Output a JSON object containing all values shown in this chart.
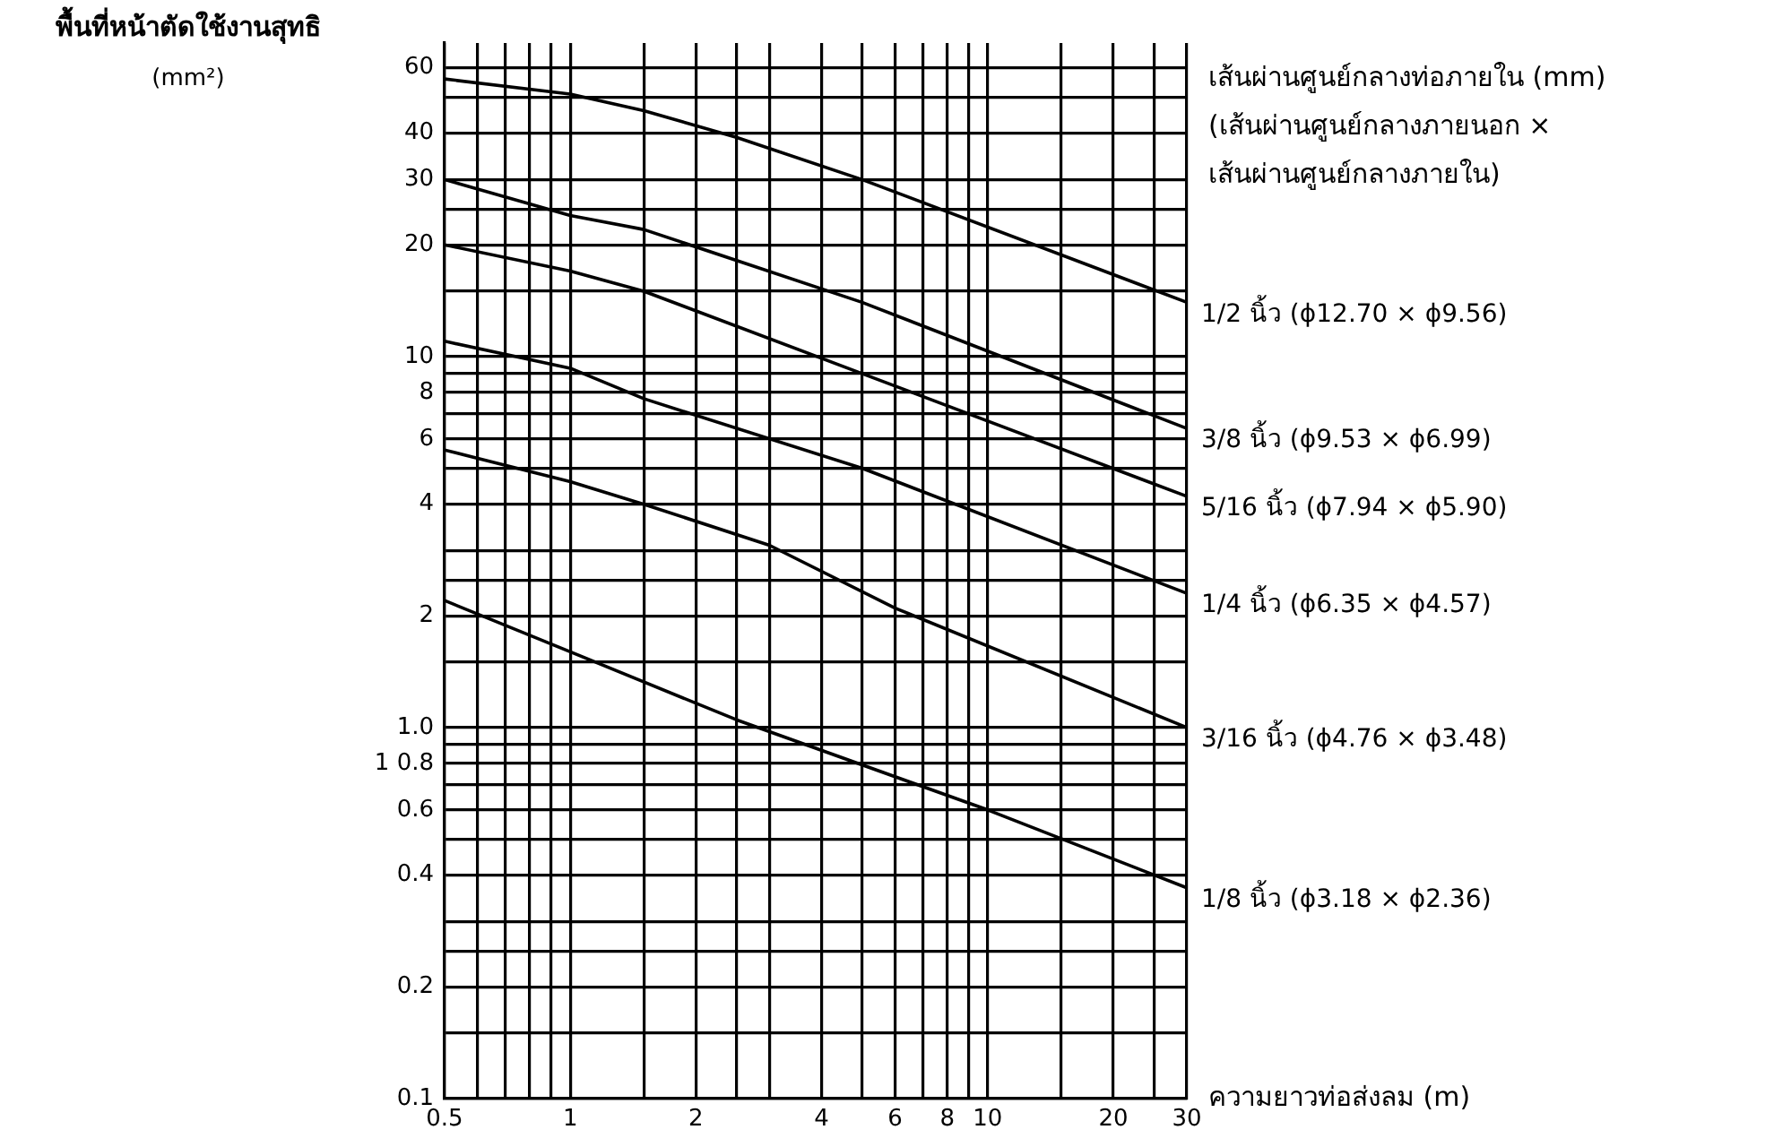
{
  "chart_data": {
    "type": "line",
    "ylabel": "พื้นที่หน้าตัดใช้งานสุทธิ (mm²)",
    "xlabel": "ความยาวท่อส่งลม (m)",
    "legend_title": "เส้นผ่านศูนย์กลางท่อภายใน (mm) (เส้นผ่านศูนย์กลางภายนอก × เส้นผ่านศูนย์กลางภายใน)",
    "log": "xy",
    "grid": true,
    "legend": false,
    "marker": "none",
    "line_style": "solid",
    "xlim": [
      0.5,
      30
    ],
    "ylim": [
      0.1,
      70
    ],
    "xticks": [
      0.5,
      {
        "value": 0.6,
        "label": null
      },
      {
        "value": 0.7,
        "label": null
      },
      {
        "value": 0.8,
        "label": null
      },
      {
        "value": 0.9,
        "label": null
      },
      1,
      {
        "value": 1.5,
        "label": null
      },
      2,
      {
        "value": 2.5,
        "label": null
      },
      {
        "value": 3,
        "label": null
      },
      4,
      {
        "value": 5,
        "label": null
      },
      6,
      {
        "value": 7,
        "label": null
      },
      8,
      {
        "value": 9,
        "label": null
      },
      10,
      {
        "value": 15,
        "label": null
      },
      20,
      {
        "value": 25,
        "label": null
      },
      30
    ],
    "yticks": [
      0.1,
      {
        "value": 0.15,
        "label": null
      },
      0.2,
      {
        "value": 0.25,
        "label": null
      },
      {
        "value": 0.3,
        "label": null
      },
      0.4,
      {
        "value": 0.5,
        "label": null
      },
      0.6,
      {
        "value": 0.7,
        "label": null
      },
      {
        "value": 0.8,
        "label": "1 0.8"
      },
      {
        "value": 0.9,
        "label": null
      },
      {
        "value": 1,
        "label": "1.0"
      },
      {
        "value": 1.5,
        "label": null
      },
      2,
      {
        "value": 2.5,
        "label": null
      },
      {
        "value": 3,
        "label": null
      },
      4,
      {
        "value": 5,
        "label": null
      },
      6,
      {
        "value": 7,
        "label": null
      },
      8,
      {
        "value": 9,
        "label": null
      },
      10,
      {
        "value": 15,
        "label": null
      },
      20,
      {
        "value": 25,
        "label": null
      },
      30,
      40,
      {
        "value": 50,
        "label": null
      },
      60
    ],
    "series": [
      {
        "name": "1/2 นิ้ว (ϕ12.70 × ϕ9.56)",
        "color": "#000000",
        "x": [
          0.5,
          1,
          1.5,
          2.5,
          5,
          30
        ],
        "values": [
          56,
          51,
          46,
          39,
          30,
          14
        ]
      },
      {
        "name": "3/8 นิ้ว (ϕ9.53 × ϕ6.99)",
        "color": "#000000",
        "x": [
          0.5,
          1,
          1.5,
          5,
          30
        ],
        "values": [
          30,
          24,
          22,
          14,
          6.4
        ]
      },
      {
        "name": "5/16 นิ้ว (ϕ7.94 × ϕ5.90)",
        "color": "#000000",
        "x": [
          0.5,
          1,
          1.5,
          5,
          30
        ],
        "values": [
          20,
          17,
          15,
          9,
          4.2
        ]
      },
      {
        "name": "1/4 นิ้ว (ϕ6.35 × ϕ4.57)",
        "color": "#000000",
        "x": [
          0.5,
          1,
          1.5,
          5,
          30
        ],
        "values": [
          11,
          9.3,
          7.7,
          5,
          2.3
        ]
      },
      {
        "name": "3/16 นิ้ว (ϕ4.76 × ϕ3.48)",
        "color": "#000000",
        "x": [
          0.5,
          1,
          1.5,
          3,
          6,
          30
        ],
        "values": [
          5.6,
          4.6,
          4,
          3.1,
          2.1,
          1
        ]
      },
      {
        "name": "1/8 นิ้ว (ϕ3.18 × ϕ2.36)",
        "color": "#000000",
        "x": [
          0.5,
          1,
          2.5,
          10,
          30
        ],
        "values": [
          2.2,
          1.6,
          1.05,
          0.6,
          0.37
        ]
      }
    ]
  }
}
